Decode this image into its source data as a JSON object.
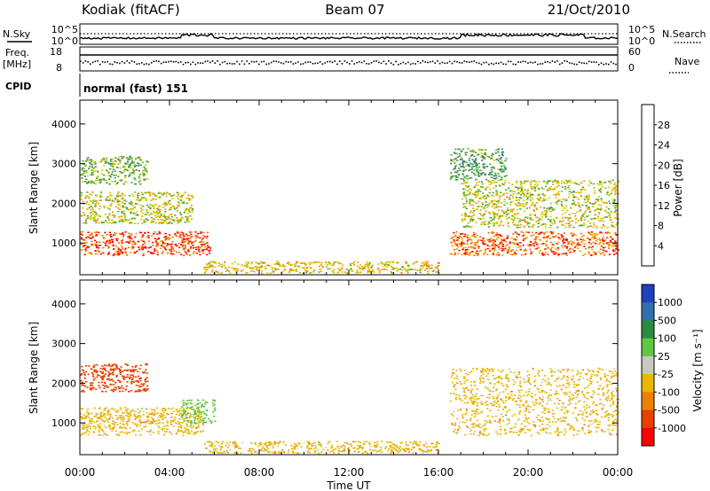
{
  "header": {
    "station": "Kodiak (fitACF)",
    "beam": "Beam 07",
    "date": "21/Oct/2010"
  },
  "top_panels": {
    "nsky_label": "N.Sky",
    "nsearch_label": "N.Search",
    "freq_label_1": "Freq.",
    "freq_label_2": "[MHz]",
    "nave_label": "Nave",
    "cpid_label": "CPID",
    "cpid_text": "normal (fast) 151",
    "noise_ticks": [
      "10^5",
      "10^0"
    ],
    "freq_ticks": [
      "18",
      "8"
    ],
    "nave_ticks": [
      "60",
      "0"
    ]
  },
  "colors": {
    "power_scale": [
      "#0000ff",
      "#2f55c0",
      "#3d8a5a",
      "#49a93a",
      "#cccc00",
      "#f0a000",
      "#f07000",
      "#ff0000"
    ],
    "velocity_scale": [
      "#2040c0",
      "#2f70b0",
      "#2a8a40",
      "#60c840",
      "#c8c8c0",
      "#e8b800",
      "#f08000",
      "#e84000",
      "#ff0000"
    ]
  },
  "chart_data": [
    {
      "type": "heatmap",
      "title": "",
      "xlabel": "Time UT",
      "ylabel": "Slant Range [km]",
      "xlim": [
        "00:00",
        "24:00"
      ],
      "ylim": [
        200,
        4600
      ],
      "x_ticks": [
        "00:00",
        "04:00",
        "08:00",
        "12:00",
        "16:00",
        "20:00",
        "00:00"
      ],
      "y_ticks": [
        1000,
        2000,
        3000,
        4000
      ],
      "colorbar": {
        "label": "Power [dB]",
        "ticks": [
          4,
          8,
          12,
          16,
          20,
          24,
          28
        ],
        "range": [
          0,
          32
        ]
      },
      "regions": [
        {
          "t_start": 0.0,
          "t_end": 5.8,
          "r_min": 700,
          "r_max": 1300,
          "level": 28
        },
        {
          "t_start": 0.0,
          "t_end": 5.0,
          "r_min": 1500,
          "r_max": 2300,
          "level": 18
        },
        {
          "t_start": 0.0,
          "t_end": 3.0,
          "r_min": 2500,
          "r_max": 3200,
          "level": 14
        },
        {
          "t_start": 5.5,
          "t_end": 16.0,
          "r_min": 250,
          "r_max": 550,
          "level": 20
        },
        {
          "t_start": 16.5,
          "t_end": 24.0,
          "r_min": 700,
          "r_max": 1300,
          "level": 26
        },
        {
          "t_start": 17.0,
          "t_end": 24.0,
          "r_min": 1400,
          "r_max": 2600,
          "level": 18
        },
        {
          "t_start": 16.5,
          "t_end": 19.0,
          "r_min": 2600,
          "r_max": 3400,
          "level": 12
        }
      ]
    },
    {
      "type": "heatmap",
      "title": "",
      "xlabel": "Time UT",
      "ylabel": "Slant Range [km]",
      "xlim": [
        "00:00",
        "24:00"
      ],
      "ylim": [
        200,
        4600
      ],
      "x_ticks": [
        "00:00",
        "04:00",
        "08:00",
        "12:00",
        "16:00",
        "20:00",
        "00:00"
      ],
      "y_ticks": [
        1000,
        2000,
        3000,
        4000
      ],
      "colorbar": {
        "label": "Velocity [m s⁻¹]",
        "ticks": [
          1000,
          500,
          100,
          25,
          -25,
          -100,
          -500,
          -1000
        ]
      },
      "regions": [
        {
          "t_start": 0.0,
          "t_end": 5.5,
          "r_min": 700,
          "r_max": 1400,
          "level": 0
        },
        {
          "t_start": 4.5,
          "t_end": 6.0,
          "r_min": 1000,
          "r_max": 1600,
          "level": 150
        },
        {
          "t_start": 5.5,
          "t_end": 16.0,
          "r_min": 250,
          "r_max": 550,
          "level": 0
        },
        {
          "t_start": 16.5,
          "t_end": 24.0,
          "r_min": 700,
          "r_max": 2400,
          "level": 0
        },
        {
          "t_start": 0.0,
          "t_end": 3.0,
          "r_min": 1800,
          "r_max": 2500,
          "level": -200
        }
      ]
    }
  ]
}
